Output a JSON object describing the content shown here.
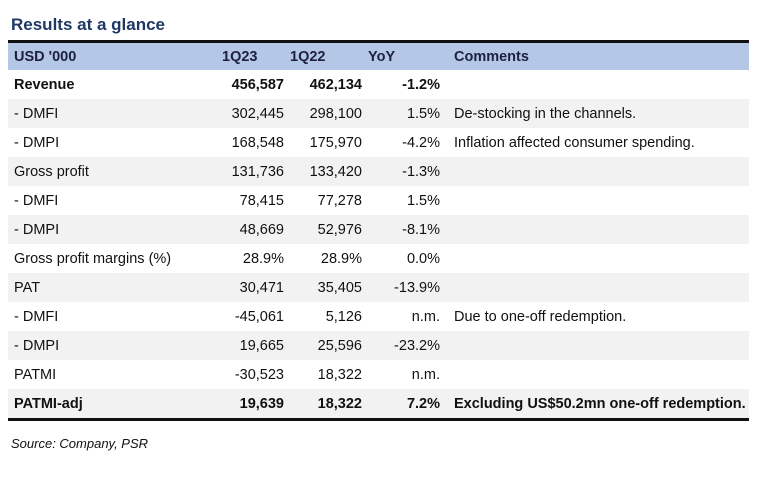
{
  "title": "Results at a glance",
  "table": {
    "headers": [
      "USD '000",
      "1Q23",
      "1Q22",
      "YoY",
      "Comments"
    ],
    "rows": [
      {
        "label": "Revenue",
        "q23": "456,587",
        "q22": "462,134",
        "yoy": "-1.2%",
        "comment": ""
      },
      {
        "label": "- DMFI",
        "q23": "302,445",
        "q22": "298,100",
        "yoy": "1.5%",
        "comment": "De-stocking in the channels."
      },
      {
        "label": "- DMPI",
        "q23": "168,548",
        "q22": "175,970",
        "yoy": "-4.2%",
        "comment": "Inflation affected consumer spending."
      },
      {
        "label": "Gross profit",
        "q23": "131,736",
        "q22": "133,420",
        "yoy": "-1.3%",
        "comment": ""
      },
      {
        "label": "- DMFI",
        "q23": "78,415",
        "q22": "77,278",
        "yoy": "1.5%",
        "comment": ""
      },
      {
        "label": "- DMPI",
        "q23": "48,669",
        "q22": "52,976",
        "yoy": "-8.1%",
        "comment": ""
      },
      {
        "label": "Gross profit margins (%)",
        "q23": "28.9%",
        "q22": "28.9%",
        "yoy": "0.0%",
        "comment": ""
      },
      {
        "label": "PAT",
        "q23": "30,471",
        "q22": "35,405",
        "yoy": "-13.9%",
        "comment": ""
      },
      {
        "label": "- DMFI",
        "q23": "-45,061",
        "q22": "5,126",
        "yoy": "n.m.",
        "comment": "Due to one-off redemption."
      },
      {
        "label": "- DMPI",
        "q23": "19,665",
        "q22": "25,596",
        "yoy": "-23.2%",
        "comment": ""
      },
      {
        "label": "PATMI",
        "q23": "-30,523",
        "q22": "18,322",
        "yoy": "n.m.",
        "comment": ""
      },
      {
        "label": "PATMI-adj",
        "q23": "19,639",
        "q22": "18,322",
        "yoy": "7.2%",
        "comment": "Excluding US$50.2mn one-off redemption."
      }
    ]
  },
  "source": "Source: Company, PSR",
  "colors": {
    "title": "#1f3864",
    "header_bg": "#b4c7e7",
    "row_shade": "#f2f2f2"
  }
}
